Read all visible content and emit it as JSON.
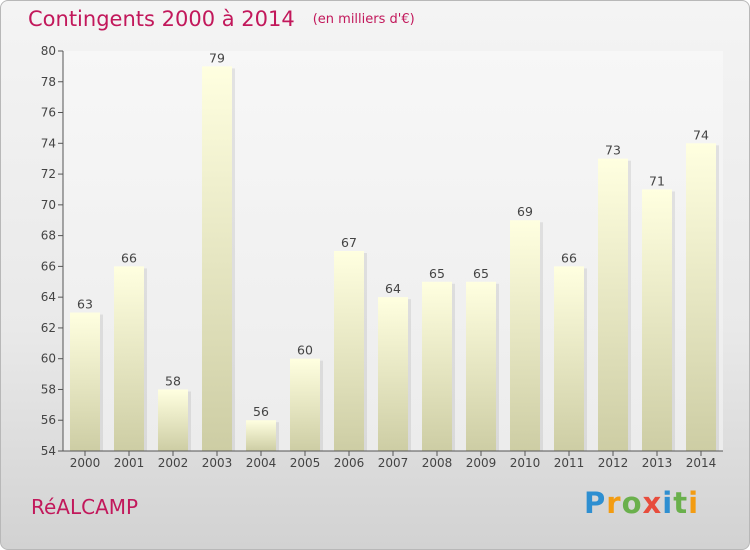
{
  "header": {
    "title": "Contingents 2000 à 2014",
    "unit": "(en milliers d'€)"
  },
  "footer": {
    "commune": "RéALCAMP",
    "logo_text": "Proxiti",
    "logo_colors": [
      "#2e8fd1",
      "#f39c12",
      "#6ab04c",
      "#e74c3c",
      "#2e8fd1",
      "#6ab04c",
      "#f39c12"
    ]
  },
  "chart_data": {
    "type": "bar",
    "categories": [
      "2000",
      "2001",
      "2002",
      "2003",
      "2004",
      "2005",
      "2006",
      "2007",
      "2008",
      "2009",
      "2010",
      "2011",
      "2012",
      "2013",
      "2014"
    ],
    "values": [
      63,
      66,
      58,
      79,
      56,
      60,
      67,
      64,
      65,
      65,
      69,
      66,
      73,
      71,
      74
    ],
    "ylim": [
      54,
      80
    ],
    "yticks": [
      54,
      56,
      58,
      60,
      62,
      64,
      66,
      68,
      70,
      72,
      74,
      76,
      78,
      80
    ],
    "grid": false,
    "bar_color_top": "#ffffe0",
    "bar_color_bottom": "#cdcda4"
  }
}
